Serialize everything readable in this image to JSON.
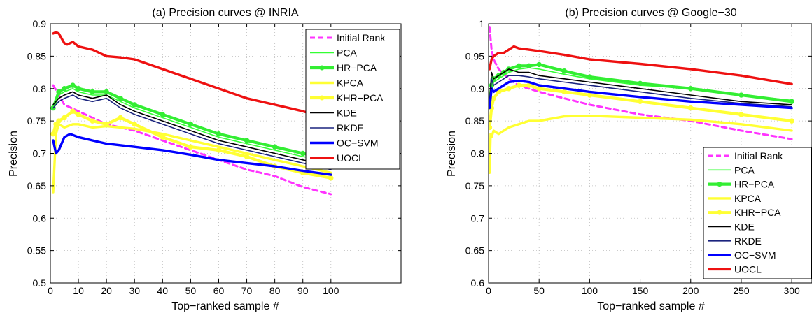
{
  "chart_data": [
    {
      "type": "line",
      "title": "(a) Precision curves @ INRIA",
      "xlabel": "Top−ranked sample #",
      "ylabel": "Precision",
      "xlim": [
        0,
        125
      ],
      "ylim": [
        0.5,
        0.9
      ],
      "xticks": [
        0,
        10,
        20,
        30,
        40,
        50,
        60,
        70,
        80,
        90,
        100
      ],
      "xtick_labels": [
        "0",
        "10",
        "20",
        "30",
        "40",
        "50",
        "60",
        "70",
        "80",
        "90",
        "100"
      ],
      "yticks": [
        0.5,
        0.55,
        0.6,
        0.65,
        0.7,
        0.75,
        0.8,
        0.85,
        0.9
      ],
      "ytick_labels": [
        "0.5",
        "0.55",
        "0.6",
        "0.65",
        "0.7",
        "0.75",
        "0.8",
        "0.85",
        "0.9"
      ],
      "grid": true,
      "legend_position": "top-right",
      "series": [
        {
          "name": "Initial Rank",
          "color": "#ff33ff",
          "style": "dashed",
          "x": [
            1,
            3,
            5,
            10,
            15,
            20,
            25,
            30,
            40,
            50,
            60,
            70,
            80,
            90,
            100
          ],
          "y": [
            0.805,
            0.79,
            0.775,
            0.765,
            0.755,
            0.745,
            0.74,
            0.735,
            0.72,
            0.705,
            0.69,
            0.675,
            0.665,
            0.648,
            0.637
          ]
        },
        {
          "name": "PCA",
          "color": "#33ff33",
          "style": "solid",
          "x": [
            1,
            3,
            5,
            8,
            10,
            15,
            20,
            25,
            30,
            40,
            50,
            60,
            70,
            80,
            90,
            100
          ],
          "y": [
            0.775,
            0.79,
            0.795,
            0.8,
            0.795,
            0.79,
            0.79,
            0.78,
            0.77,
            0.755,
            0.74,
            0.725,
            0.715,
            0.705,
            0.695,
            0.688
          ]
        },
        {
          "name": "HR−PCA",
          "color": "#33ee33",
          "style": "thick-markers",
          "x": [
            1,
            3,
            5,
            8,
            10,
            15,
            20,
            25,
            30,
            40,
            50,
            60,
            70,
            80,
            90,
            100
          ],
          "y": [
            0.77,
            0.795,
            0.8,
            0.805,
            0.8,
            0.795,
            0.795,
            0.785,
            0.775,
            0.76,
            0.745,
            0.73,
            0.72,
            0.71,
            0.7,
            0.69
          ]
        },
        {
          "name": "KPCA",
          "color": "#ffff33",
          "style": "thick",
          "x": [
            1,
            2,
            3,
            5,
            8,
            10,
            15,
            20,
            25,
            30,
            40,
            50,
            60,
            70,
            80,
            90,
            100
          ],
          "y": [
            0.64,
            0.73,
            0.745,
            0.74,
            0.745,
            0.745,
            0.74,
            0.742,
            0.74,
            0.738,
            0.73,
            0.72,
            0.71,
            0.7,
            0.69,
            0.68,
            0.67
          ]
        },
        {
          "name": "KHR−PCA",
          "color": "#ffff33",
          "style": "thick-markers",
          "x": [
            1,
            2,
            3,
            5,
            8,
            10,
            15,
            20,
            25,
            30,
            40,
            50,
            60,
            70,
            80,
            90,
            100
          ],
          "y": [
            0.73,
            0.745,
            0.75,
            0.755,
            0.765,
            0.76,
            0.75,
            0.745,
            0.755,
            0.745,
            0.725,
            0.71,
            0.705,
            0.695,
            0.68,
            0.67,
            0.662
          ]
        },
        {
          "name": "KDE",
          "color": "#000000",
          "style": "solid",
          "x": [
            1,
            3,
            5,
            8,
            10,
            15,
            20,
            25,
            30,
            40,
            50,
            60,
            70,
            80,
            90,
            100
          ],
          "y": [
            0.775,
            0.785,
            0.79,
            0.795,
            0.79,
            0.785,
            0.79,
            0.775,
            0.765,
            0.75,
            0.735,
            0.72,
            0.71,
            0.7,
            0.69,
            0.68
          ]
        },
        {
          "name": "RKDE",
          "color": "#1a237e",
          "style": "solid",
          "x": [
            1,
            3,
            5,
            8,
            10,
            15,
            20,
            25,
            30,
            40,
            50,
            60,
            70,
            80,
            90,
            100
          ],
          "y": [
            0.77,
            0.78,
            0.785,
            0.79,
            0.785,
            0.78,
            0.785,
            0.77,
            0.76,
            0.745,
            0.73,
            0.715,
            0.705,
            0.695,
            0.685,
            0.675
          ]
        },
        {
          "name": "OC−SVM",
          "color": "#0000ff",
          "style": "thick",
          "x": [
            1,
            2,
            3,
            5,
            7,
            10,
            15,
            20,
            30,
            40,
            50,
            60,
            70,
            80,
            90,
            100
          ],
          "y": [
            0.72,
            0.7,
            0.705,
            0.725,
            0.73,
            0.725,
            0.72,
            0.715,
            0.71,
            0.705,
            0.698,
            0.69,
            0.685,
            0.68,
            0.673,
            0.667
          ]
        },
        {
          "name": "UOCL",
          "color": "#ee1111",
          "style": "thick",
          "x": [
            1,
            2,
            3,
            5,
            6,
            8,
            10,
            15,
            20,
            25,
            30,
            40,
            50,
            60,
            70,
            80,
            90,
            100
          ],
          "y": [
            0.885,
            0.887,
            0.885,
            0.87,
            0.868,
            0.872,
            0.865,
            0.86,
            0.85,
            0.848,
            0.845,
            0.83,
            0.815,
            0.8,
            0.785,
            0.775,
            0.765,
            0.752
          ]
        }
      ]
    },
    {
      "type": "line",
      "title": "(b) Precision curves @ Google−30",
      "xlabel": "Top−ranked sample #",
      "ylabel": "Precision",
      "xlim": [
        0,
        320
      ],
      "ylim": [
        0.6,
        1
      ],
      "xticks": [
        0,
        50,
        100,
        150,
        200,
        250,
        300
      ],
      "xtick_labels": [
        "0",
        "50",
        "100",
        "150",
        "200",
        "250",
        "300"
      ],
      "yticks": [
        0.6,
        0.65,
        0.7,
        0.75,
        0.8,
        0.85,
        0.9,
        0.95,
        1
      ],
      "ytick_labels": [
        "0.6",
        "0.65",
        "0.7",
        "0.75",
        "0.8",
        "0.85",
        "0.9",
        "0.95",
        "1"
      ],
      "grid": true,
      "legend_position": "bottom-right",
      "series": [
        {
          "name": "Initial Rank",
          "color": "#ff33ff",
          "style": "dashed",
          "x": [
            1,
            3,
            5,
            10,
            20,
            30,
            50,
            75,
            100,
            150,
            200,
            250,
            300
          ],
          "y": [
            0.995,
            0.96,
            0.945,
            0.93,
            0.915,
            0.905,
            0.895,
            0.885,
            0.875,
            0.86,
            0.85,
            0.835,
            0.822
          ]
        },
        {
          "name": "PCA",
          "color": "#33ff33",
          "style": "solid",
          "x": [
            1,
            3,
            5,
            10,
            15,
            20,
            30,
            40,
            50,
            75,
            100,
            150,
            200,
            250,
            300
          ],
          "y": [
            0.87,
            0.9,
            0.91,
            0.915,
            0.92,
            0.925,
            0.93,
            0.932,
            0.93,
            0.922,
            0.915,
            0.905,
            0.9,
            0.89,
            0.882
          ]
        },
        {
          "name": "HR−PCA",
          "color": "#33ee33",
          "style": "thick-markers",
          "x": [
            1,
            3,
            5,
            10,
            15,
            20,
            30,
            40,
            50,
            75,
            100,
            150,
            200,
            250,
            300
          ],
          "y": [
            0.875,
            0.905,
            0.915,
            0.92,
            0.925,
            0.93,
            0.935,
            0.935,
            0.937,
            0.927,
            0.918,
            0.908,
            0.9,
            0.89,
            0.88
          ]
        },
        {
          "name": "KPCA",
          "color": "#ffff33",
          "style": "thick",
          "x": [
            1,
            2,
            3,
            5,
            10,
            15,
            20,
            30,
            40,
            50,
            75,
            100,
            150,
            200,
            250,
            300
          ],
          "y": [
            0.77,
            0.83,
            0.825,
            0.835,
            0.83,
            0.835,
            0.84,
            0.845,
            0.85,
            0.85,
            0.857,
            0.858,
            0.855,
            0.852,
            0.845,
            0.835
          ]
        },
        {
          "name": "KHR−PCA",
          "color": "#ffff33",
          "style": "thick-markers",
          "x": [
            1,
            3,
            5,
            10,
            20,
            30,
            40,
            50,
            75,
            100,
            150,
            200,
            250,
            300
          ],
          "y": [
            0.84,
            0.87,
            0.885,
            0.895,
            0.9,
            0.905,
            0.905,
            0.9,
            0.895,
            0.89,
            0.88,
            0.87,
            0.86,
            0.85
          ]
        },
        {
          "name": "KDE",
          "color": "#000000",
          "style": "solid",
          "x": [
            1,
            3,
            5,
            10,
            15,
            20,
            30,
            40,
            50,
            75,
            100,
            150,
            200,
            250,
            300
          ],
          "y": [
            0.88,
            0.925,
            0.915,
            0.92,
            0.925,
            0.93,
            0.925,
            0.925,
            0.92,
            0.915,
            0.91,
            0.9,
            0.89,
            0.88,
            0.875
          ]
        },
        {
          "name": "RKDE",
          "color": "#1a237e",
          "style": "solid",
          "x": [
            1,
            3,
            5,
            10,
            15,
            20,
            30,
            40,
            50,
            75,
            100,
            150,
            200,
            250,
            300
          ],
          "y": [
            0.87,
            0.915,
            0.905,
            0.91,
            0.915,
            0.92,
            0.92,
            0.918,
            0.915,
            0.91,
            0.905,
            0.895,
            0.885,
            0.877,
            0.872
          ]
        },
        {
          "name": "OC−SVM",
          "color": "#0000ff",
          "style": "thick",
          "x": [
            1,
            3,
            5,
            10,
            15,
            20,
            30,
            40,
            50,
            75,
            100,
            150,
            200,
            250,
            300
          ],
          "y": [
            0.87,
            0.9,
            0.895,
            0.9,
            0.905,
            0.91,
            0.912,
            0.91,
            0.905,
            0.9,
            0.895,
            0.887,
            0.88,
            0.875,
            0.87
          ]
        },
        {
          "name": "UOCL",
          "color": "#ee1111",
          "style": "thick",
          "x": [
            1,
            3,
            5,
            10,
            15,
            20,
            25,
            30,
            40,
            50,
            75,
            100,
            150,
            200,
            250,
            300
          ],
          "y": [
            0.93,
            0.945,
            0.95,
            0.955,
            0.955,
            0.96,
            0.965,
            0.962,
            0.96,
            0.958,
            0.952,
            0.945,
            0.938,
            0.93,
            0.92,
            0.907
          ]
        }
      ]
    }
  ]
}
